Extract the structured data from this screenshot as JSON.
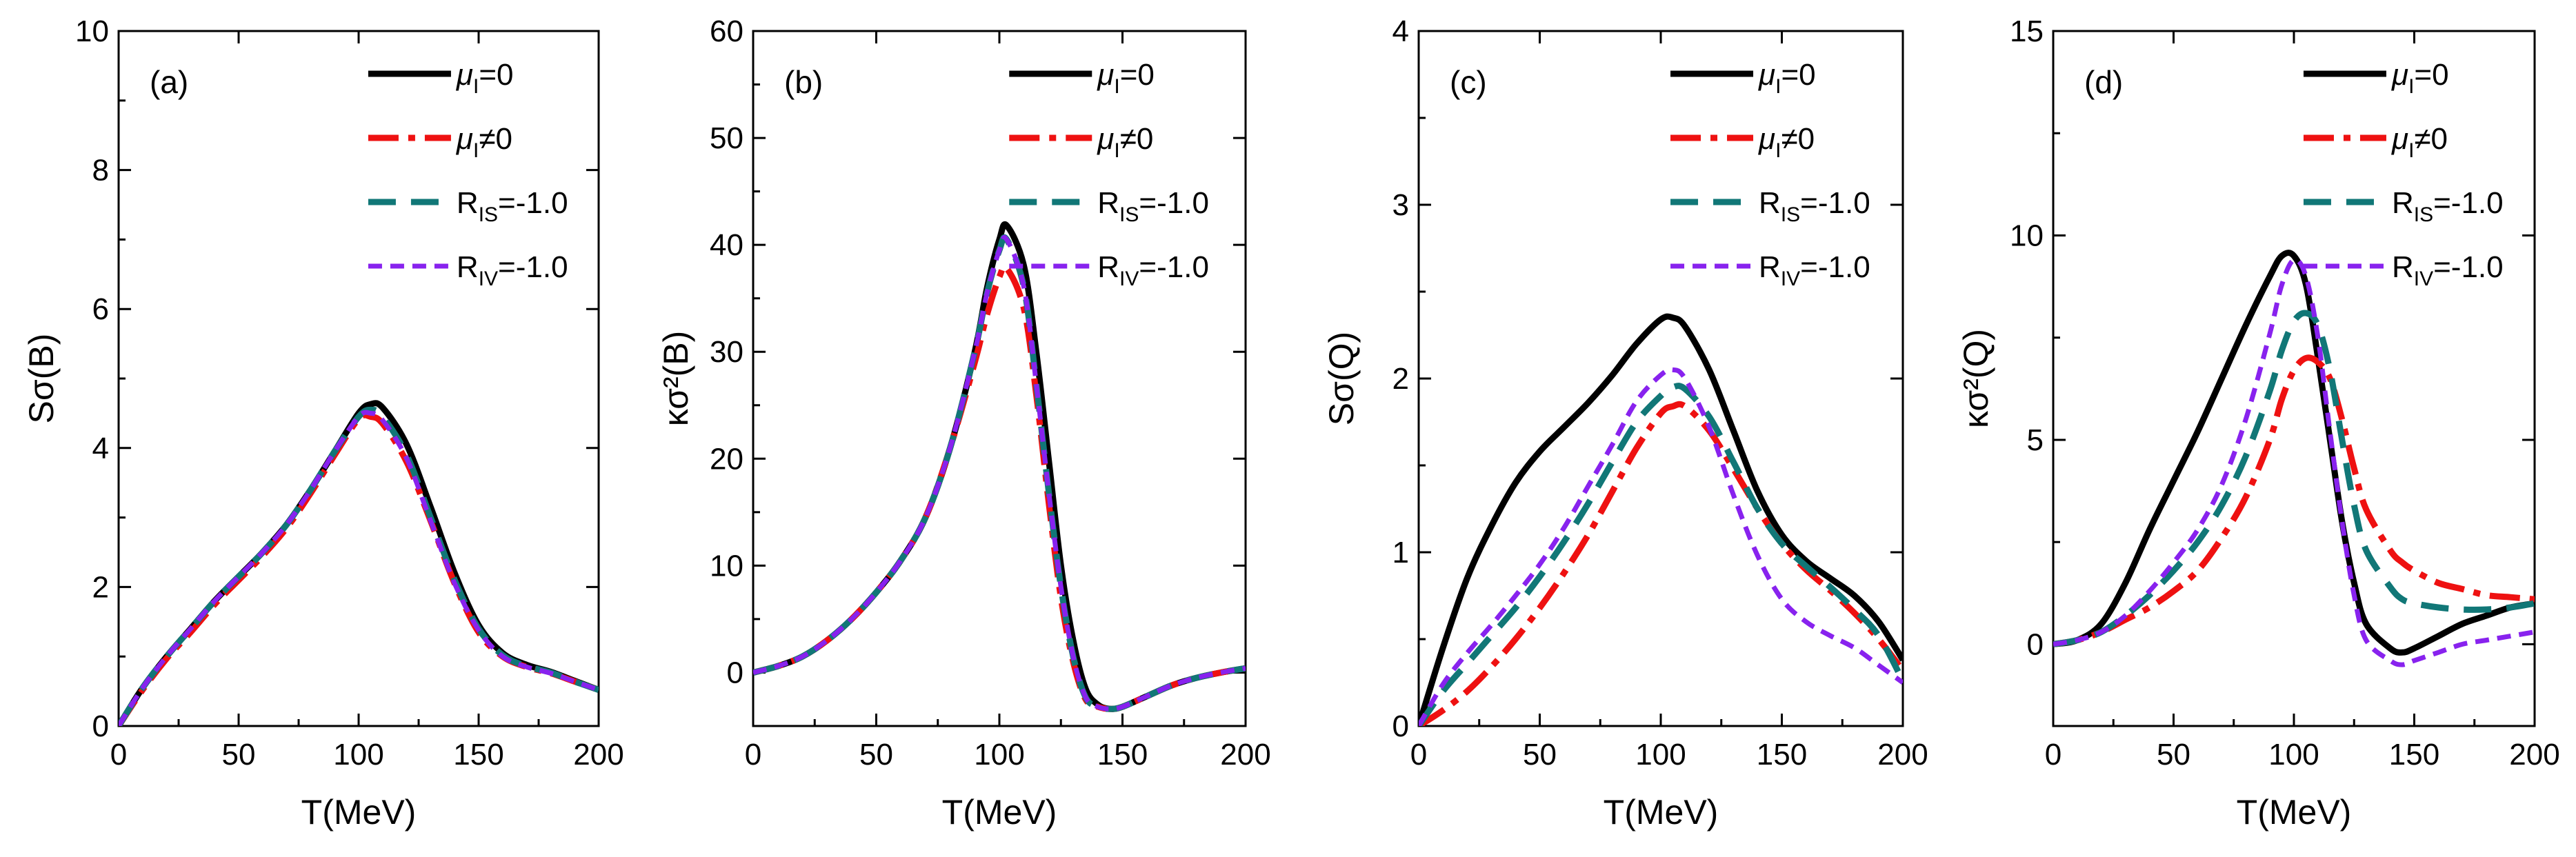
{
  "chart_data": [
    {
      "type": "line",
      "panel_label": "(a)",
      "xlabel": "T(MeV)",
      "ylabel": "Sσ(B)",
      "xlim": [
        0,
        200
      ],
      "ylim": [
        0,
        10
      ],
      "xticks": [
        "0",
        "50",
        "100",
        "150",
        "200"
      ],
      "yticks": [
        "0",
        "2",
        "4",
        "6",
        "8",
        "10"
      ],
      "legend": [
        "μI=0",
        "μI≠0",
        "RIS=-1.0",
        "RIV=-1.0"
      ],
      "series": [
        {
          "name": "μI=0",
          "x": [
            0,
            10,
            20,
            30,
            40,
            50,
            60,
            70,
            80,
            90,
            100,
            105,
            110,
            120,
            130,
            140,
            150,
            160,
            170,
            180,
            190,
            200
          ],
          "y": [
            0,
            0.55,
            1.0,
            1.4,
            1.8,
            2.15,
            2.5,
            2.9,
            3.4,
            3.95,
            4.5,
            4.63,
            4.58,
            4.05,
            3.15,
            2.2,
            1.45,
            1.05,
            0.88,
            0.78,
            0.65,
            0.52
          ]
        },
        {
          "name": "μI≠0",
          "x": [
            0,
            10,
            20,
            30,
            40,
            50,
            60,
            70,
            80,
            90,
            100,
            105,
            110,
            120,
            130,
            140,
            150,
            160,
            170,
            180,
            190,
            200
          ],
          "y": [
            0,
            0.52,
            0.97,
            1.35,
            1.75,
            2.1,
            2.45,
            2.85,
            3.35,
            3.9,
            4.42,
            4.45,
            4.35,
            3.8,
            2.95,
            2.05,
            1.35,
            1.0,
            0.85,
            0.76,
            0.64,
            0.52
          ]
        },
        {
          "name": "RIS=-1.0",
          "x": [
            0,
            10,
            20,
            30,
            40,
            50,
            60,
            70,
            80,
            90,
            100,
            105,
            110,
            120,
            130,
            140,
            150,
            160,
            170,
            180,
            190,
            200
          ],
          "y": [
            0,
            0.55,
            1.0,
            1.4,
            1.8,
            2.15,
            2.5,
            2.9,
            3.4,
            3.95,
            4.45,
            4.55,
            4.45,
            3.9,
            3.0,
            2.1,
            1.4,
            1.02,
            0.86,
            0.77,
            0.64,
            0.52
          ]
        },
        {
          "name": "RIV=-1.0",
          "x": [
            0,
            10,
            20,
            30,
            40,
            50,
            60,
            70,
            80,
            90,
            100,
            105,
            110,
            120,
            130,
            140,
            150,
            160,
            170,
            180,
            190,
            200
          ],
          "y": [
            0,
            0.55,
            1.0,
            1.4,
            1.8,
            2.15,
            2.5,
            2.9,
            3.4,
            3.95,
            4.45,
            4.5,
            4.4,
            3.85,
            2.95,
            2.05,
            1.38,
            1.0,
            0.85,
            0.76,
            0.64,
            0.52
          ]
        }
      ]
    },
    {
      "type": "line",
      "panel_label": "(b)",
      "xlabel": "T(MeV)",
      "ylabel": "κσ²(B)",
      "xlim": [
        0,
        200
      ],
      "ylim": [
        -5,
        60
      ],
      "xticks": [
        "0",
        "50",
        "100",
        "150",
        "200"
      ],
      "yticks": [
        "0",
        "10",
        "20",
        "30",
        "40",
        "50",
        "60"
      ],
      "legend": [
        "μI=0",
        "μI≠0",
        "RIS=-1.0",
        "RIV=-1.0"
      ],
      "series": [
        {
          "name": "μI=0",
          "x": [
            0,
            10,
            20,
            30,
            40,
            50,
            60,
            70,
            80,
            90,
            95,
            100,
            103,
            110,
            115,
            120,
            125,
            130,
            135,
            140,
            145,
            150,
            160,
            170,
            180,
            190,
            200
          ],
          "y": [
            0,
            0.6,
            1.5,
            3.0,
            5.0,
            7.5,
            10.5,
            14.5,
            21,
            30,
            36,
            40.5,
            41.8,
            38,
            30,
            20,
            10,
            3,
            -1.5,
            -3,
            -3.4,
            -3.2,
            -2.2,
            -1.2,
            -0.5,
            0,
            0.4
          ]
        },
        {
          "name": "μI≠0",
          "x": [
            0,
            10,
            20,
            30,
            40,
            50,
            60,
            70,
            80,
            90,
            95,
            100,
            103,
            110,
            115,
            120,
            125,
            130,
            135,
            140,
            145,
            150,
            160,
            170,
            180,
            190,
            200
          ],
          "y": [
            0,
            0.6,
            1.5,
            3.0,
            5.0,
            7.5,
            10.5,
            14.5,
            21,
            29,
            33.5,
            37,
            37.8,
            34,
            26,
            16,
            7,
            1,
            -2.5,
            -3.2,
            -3.4,
            -3.2,
            -2.2,
            -1.2,
            -0.5,
            0,
            0.4
          ]
        },
        {
          "name": "RIS=-1.0",
          "x": [
            0,
            10,
            20,
            30,
            40,
            50,
            60,
            70,
            80,
            90,
            95,
            100,
            103,
            110,
            115,
            120,
            125,
            130,
            135,
            140,
            145,
            150,
            160,
            170,
            180,
            190,
            200
          ],
          "y": [
            0,
            0.6,
            1.5,
            3.0,
            5.0,
            7.5,
            10.5,
            14.5,
            21,
            30,
            35.5,
            39.5,
            40.5,
            36,
            27,
            17,
            8,
            1.5,
            -2.3,
            -3.2,
            -3.4,
            -3.2,
            -2.2,
            -1.2,
            -0.5,
            0,
            0.4
          ]
        },
        {
          "name": "RIV=-1.0",
          "x": [
            0,
            10,
            20,
            30,
            40,
            50,
            60,
            70,
            80,
            90,
            95,
            100,
            103,
            110,
            115,
            120,
            125,
            130,
            135,
            140,
            145,
            150,
            160,
            170,
            180,
            190,
            200
          ],
          "y": [
            0,
            0.6,
            1.5,
            3.0,
            5.0,
            7.5,
            10.5,
            14.5,
            21,
            30,
            35.5,
            39.5,
            40.5,
            36,
            27,
            17,
            8,
            1.5,
            -2.3,
            -3.2,
            -3.4,
            -3.2,
            -2.2,
            -1.2,
            -0.5,
            0,
            0.4
          ]
        }
      ]
    },
    {
      "type": "line",
      "panel_label": "(c)",
      "xlabel": "T(MeV)",
      "ylabel": "Sσ(Q)",
      "xlim": [
        0,
        200
      ],
      "ylim": [
        0,
        4
      ],
      "xticks": [
        "0",
        "50",
        "100",
        "150",
        "200"
      ],
      "yticks": [
        "0",
        "1",
        "2",
        "3",
        "4"
      ],
      "legend": [
        "μI=0",
        "μI≠0",
        "RIS=-1.0",
        "RIV=-1.0"
      ],
      "series": [
        {
          "name": "μI=0",
          "x": [
            0,
            10,
            20,
            30,
            40,
            50,
            60,
            70,
            80,
            90,
            100,
            105,
            110,
            120,
            130,
            140,
            150,
            160,
            170,
            180,
            190,
            200
          ],
          "y": [
            0,
            0.45,
            0.85,
            1.15,
            1.4,
            1.58,
            1.72,
            1.86,
            2.02,
            2.2,
            2.34,
            2.35,
            2.3,
            2.05,
            1.7,
            1.35,
            1.1,
            0.95,
            0.85,
            0.75,
            0.6,
            0.38
          ]
        },
        {
          "name": "μI≠0",
          "x": [
            0,
            10,
            20,
            30,
            40,
            50,
            60,
            70,
            80,
            90,
            100,
            105,
            110,
            120,
            130,
            140,
            150,
            160,
            170,
            180,
            190,
            200
          ],
          "y": [
            0,
            0.09,
            0.2,
            0.34,
            0.5,
            0.68,
            0.88,
            1.1,
            1.35,
            1.6,
            1.8,
            1.84,
            1.84,
            1.7,
            1.48,
            1.25,
            1.05,
            0.9,
            0.78,
            0.65,
            0.5,
            0.32
          ]
        },
        {
          "name": "RIS=-1.0",
          "x": [
            0,
            10,
            20,
            30,
            40,
            50,
            60,
            70,
            80,
            90,
            100,
            105,
            110,
            120,
            130,
            140,
            150,
            160,
            170,
            180,
            190,
            200
          ],
          "y": [
            0,
            0.2,
            0.36,
            0.52,
            0.68,
            0.86,
            1.06,
            1.28,
            1.52,
            1.75,
            1.9,
            1.95,
            1.94,
            1.78,
            1.52,
            1.25,
            1.05,
            0.92,
            0.8,
            0.67,
            0.52,
            0.26
          ]
        },
        {
          "name": "RIV=-1.0",
          "x": [
            0,
            10,
            20,
            30,
            40,
            50,
            60,
            70,
            80,
            90,
            100,
            105,
            110,
            120,
            130,
            140,
            150,
            160,
            170,
            180,
            190,
            200
          ],
          "y": [
            0,
            0.24,
            0.42,
            0.58,
            0.75,
            0.93,
            1.14,
            1.38,
            1.62,
            1.87,
            2.02,
            2.05,
            2.0,
            1.72,
            1.33,
            0.98,
            0.73,
            0.6,
            0.52,
            0.45,
            0.35,
            0.25
          ]
        }
      ]
    },
    {
      "type": "line",
      "panel_label": "(d)",
      "xlabel": "T(MeV)",
      "ylabel": "κσ²(Q)",
      "xlim": [
        0,
        200
      ],
      "ylim": [
        -2,
        15
      ],
      "xticks": [
        "0",
        "50",
        "100",
        "150",
        "200"
      ],
      "yticks": [
        "0",
        "5",
        "10",
        "15"
      ],
      "legend": [
        "μI=0",
        "μI≠0",
        "RIS=-1.0",
        "RIV=-1.0"
      ],
      "series": [
        {
          "name": "μI=0",
          "x": [
            0,
            10,
            20,
            30,
            40,
            50,
            60,
            70,
            80,
            90,
            95,
            100,
            105,
            110,
            115,
            120,
            125,
            130,
            140,
            145,
            150,
            160,
            170,
            180,
            190,
            200
          ],
          "y": [
            0,
            0.1,
            0.5,
            1.5,
            2.8,
            4.0,
            5.2,
            6.5,
            7.8,
            9.0,
            9.5,
            9.5,
            8.8,
            7.0,
            5.0,
            3.0,
            1.5,
            0.5,
            -0.1,
            -0.2,
            -0.1,
            0.2,
            0.5,
            0.7,
            0.9,
            1.0
          ]
        },
        {
          "name": "μI≠0",
          "x": [
            0,
            10,
            20,
            30,
            40,
            50,
            60,
            70,
            80,
            90,
            95,
            100,
            105,
            110,
            115,
            120,
            125,
            130,
            140,
            145,
            150,
            160,
            170,
            180,
            190,
            200
          ],
          "y": [
            0,
            0.1,
            0.3,
            0.6,
            0.9,
            1.3,
            1.8,
            2.6,
            3.6,
            5.0,
            6.0,
            6.7,
            7.0,
            6.9,
            6.5,
            5.5,
            4.3,
            3.3,
            2.3,
            2.0,
            1.8,
            1.5,
            1.35,
            1.2,
            1.15,
            1.1
          ]
        },
        {
          "name": "RIS=-1.0",
          "x": [
            0,
            10,
            20,
            30,
            40,
            50,
            60,
            70,
            80,
            90,
            95,
            100,
            105,
            110,
            115,
            120,
            125,
            130,
            140,
            145,
            150,
            160,
            170,
            180,
            190,
            200
          ],
          "y": [
            0,
            0.1,
            0.3,
            0.7,
            1.2,
            1.8,
            2.5,
            3.4,
            4.6,
            6.2,
            7.2,
            7.9,
            8.1,
            7.8,
            6.7,
            5.0,
            3.4,
            2.3,
            1.4,
            1.1,
            1.0,
            0.9,
            0.85,
            0.85,
            0.9,
            1.0
          ]
        },
        {
          "name": "RIV=-1.0",
          "x": [
            0,
            10,
            20,
            30,
            40,
            50,
            60,
            70,
            80,
            90,
            95,
            100,
            105,
            110,
            115,
            120,
            125,
            130,
            140,
            145,
            150,
            160,
            170,
            180,
            190,
            200
          ],
          "y": [
            0,
            0.1,
            0.3,
            0.7,
            1.3,
            2.0,
            2.8,
            3.9,
            5.5,
            7.6,
            8.8,
            9.4,
            9.0,
            7.5,
            5.2,
            3.0,
            1.2,
            0.1,
            -0.4,
            -0.5,
            -0.4,
            -0.2,
            0.0,
            0.1,
            0.2,
            0.3
          ]
        }
      ]
    }
  ],
  "series_colors": [
    "#000000",
    "#ee1111",
    "#117777",
    "#8822ee"
  ]
}
